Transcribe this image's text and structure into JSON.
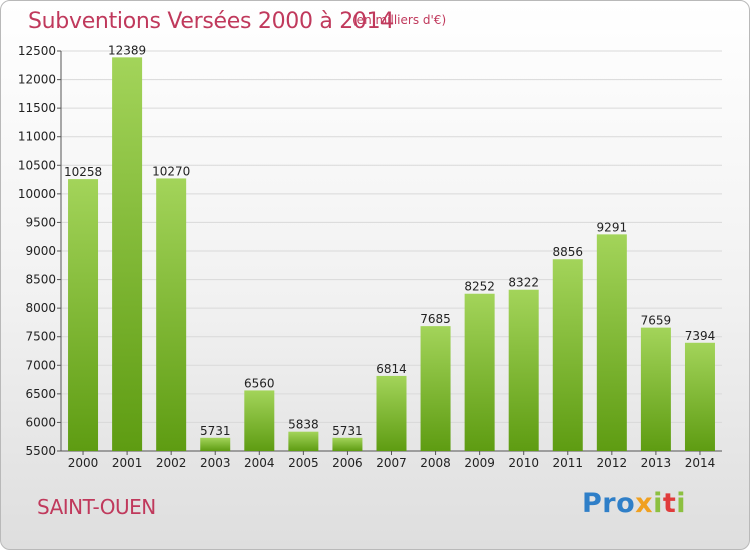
{
  "header": {
    "title": "Subventions Versées 2000 à 2014",
    "subtitle": "(en milliers d'€)"
  },
  "footer": {
    "commune": "SAINT-OUEN",
    "logo": {
      "p1": "Pro",
      "p2": "x",
      "p3": "i",
      "p4": "t",
      "p5": "i"
    }
  },
  "colors": {
    "title": "#c0395c",
    "bar_top": "#a3d45a",
    "bar_bottom": "#5e9c12"
  },
  "chart_data": {
    "type": "bar",
    "title": "Subventions Versées 2000 à 2014",
    "subtitle": "(en milliers d'€)",
    "xlabel": "",
    "ylabel": "",
    "categories": [
      "2000",
      "2001",
      "2002",
      "2003",
      "2004",
      "2005",
      "2006",
      "2007",
      "2008",
      "2009",
      "2010",
      "2011",
      "2012",
      "2013",
      "2014"
    ],
    "values": [
      10258,
      12389,
      10270,
      5731,
      6560,
      5838,
      5731,
      6814,
      7685,
      8252,
      8322,
      8856,
      9291,
      7659,
      7394
    ],
    "ylim": [
      5500,
      12500
    ],
    "yticks": [
      5500,
      6000,
      6500,
      7000,
      7500,
      8000,
      8500,
      9000,
      9500,
      10000,
      10500,
      11000,
      11500,
      12000,
      12500
    ],
    "grid": true,
    "legend": "none"
  }
}
